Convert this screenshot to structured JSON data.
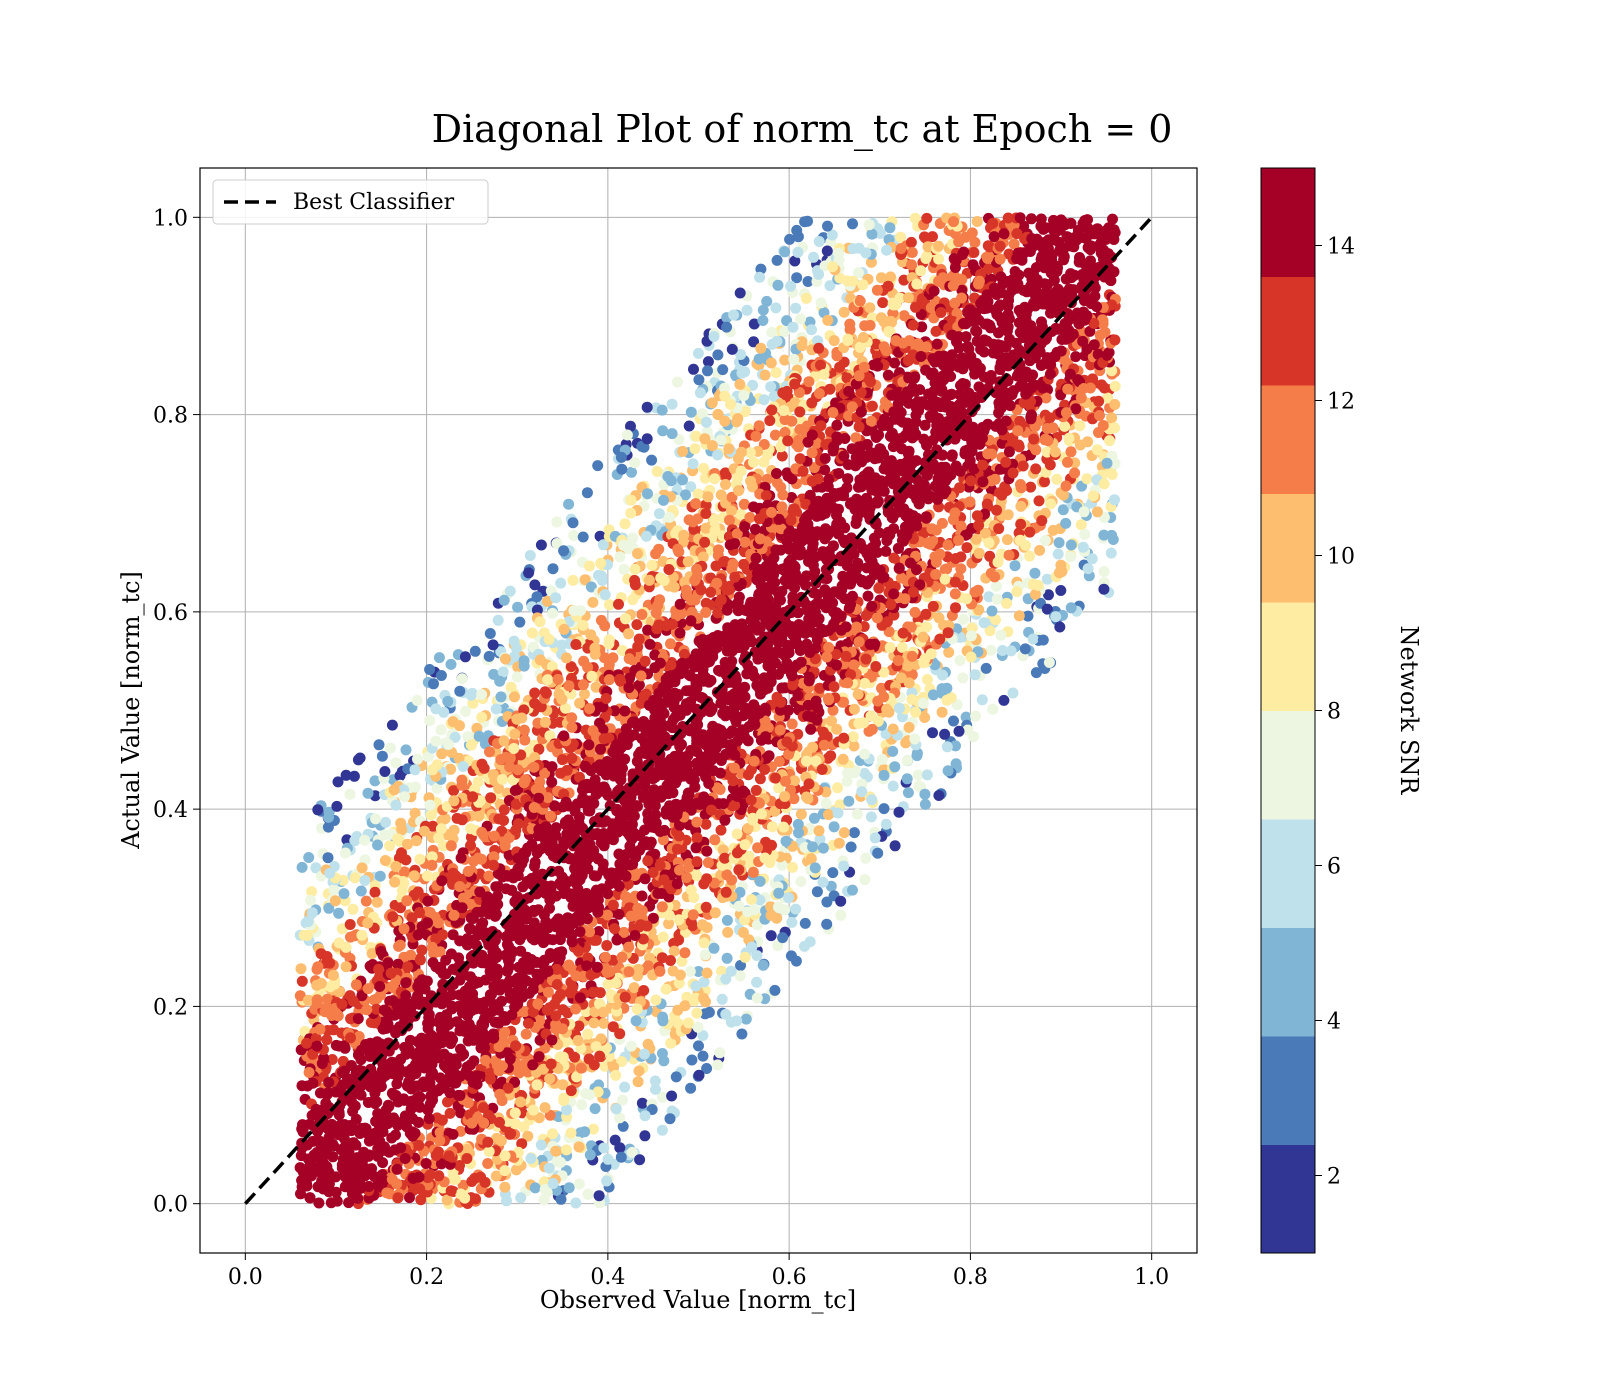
{
  "chart_data": {
    "type": "scatter",
    "title": "Diagonal Plot of norm_tc at Epoch = 0",
    "xlabel": "Observed Value [norm_tc]",
    "ylabel": "Actual Value [norm_tc]",
    "xlim": [
      -0.05,
      1.05
    ],
    "ylim": [
      -0.05,
      1.05
    ],
    "xticks": [
      "0.0",
      "0.2",
      "0.4",
      "0.6",
      "0.8",
      "1.0"
    ],
    "yticks": [
      "0.0",
      "0.2",
      "0.4",
      "0.6",
      "0.8",
      "1.0"
    ],
    "grid": true,
    "legend": {
      "placement": "top-left",
      "entries": [
        "Best Classifier"
      ]
    },
    "reference_line": {
      "name": "Best Classifier",
      "x": [
        0.0,
        1.0
      ],
      "y": [
        0.0,
        1.0
      ],
      "style": "dashed",
      "color": "#000000"
    },
    "colorbar": {
      "label": "Network SNR",
      "colormap": "RdYlBu_r",
      "range": [
        1,
        15
      ],
      "ticks": [
        "2",
        "4",
        "6",
        "8",
        "10",
        "12",
        "14"
      ],
      "bins": [
        {
          "from": 1.0,
          "to": 2.4,
          "color": "#313695"
        },
        {
          "from": 2.4,
          "to": 3.8,
          "color": "#4a7ab7"
        },
        {
          "from": 3.8,
          "to": 5.2,
          "color": "#81b5d6"
        },
        {
          "from": 5.2,
          "to": 6.6,
          "color": "#bfe1ec"
        },
        {
          "from": 6.6,
          "to": 8.0,
          "color": "#ecf6e0"
        },
        {
          "from": 8.0,
          "to": 9.4,
          "color": "#fdeca2"
        },
        {
          "from": 9.4,
          "to": 10.8,
          "color": "#fdbe70"
        },
        {
          "from": 10.8,
          "to": 12.2,
          "color": "#f57d4a"
        },
        {
          "from": 12.2,
          "to": 13.6,
          "color": "#d83529"
        },
        {
          "from": 13.6,
          "to": 15.0,
          "color": "#a50026"
        }
      ]
    },
    "point_cloud": {
      "description": "dense band of points around diagonal, observed = actual +/- ~0.35",
      "bands": [
        {
          "offset_range": [
            -0.08,
            0.08
          ],
          "snr_range": [
            13.6,
            15.0
          ]
        },
        {
          "offset_range": [
            0.08,
            0.16
          ],
          "snr_range": [
            10.8,
            15.0
          ]
        },
        {
          "offset_range": [
            0.16,
            0.24
          ],
          "snr_range": [
            8.0,
            13.6
          ]
        },
        {
          "offset_range": [
            0.24,
            0.32
          ],
          "snr_range": [
            4.0,
            10.8
          ]
        },
        {
          "offset_range": [
            0.32,
            0.4
          ],
          "snr_range": [
            1.0,
            8.0
          ]
        }
      ]
    }
  }
}
